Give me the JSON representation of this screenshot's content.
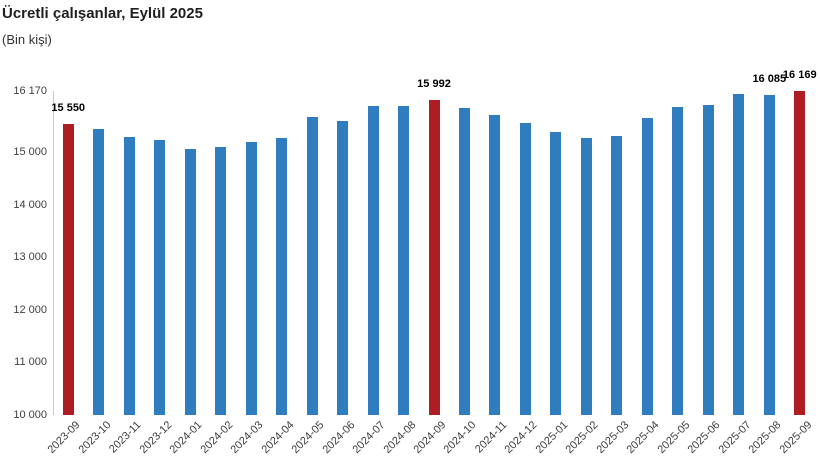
{
  "chart": {
    "title": "Ücretli çalışanlar, Eylül 2025",
    "subtitle": "(Bin kişi)"
  },
  "chart_data": {
    "type": "bar",
    "title": "Ücretli çalışanlar, Eylül 2025",
    "subtitle": "(Bin kişi)",
    "unit": "Bin kişi",
    "categories": [
      "2023-09",
      "2023-10",
      "2023-11",
      "2023-12",
      "2024-01",
      "2024-02",
      "2024-03",
      "2024-04",
      "2024-05",
      "2024-06",
      "2024-07",
      "2024-08",
      "2024-09",
      "2024-10",
      "2024-11",
      "2024-12",
      "2025-01",
      "2025-02",
      "2025-03",
      "2025-04",
      "2025-05",
      "2025-06",
      "2025-07",
      "2025-08",
      "2025-09"
    ],
    "values": [
      15550,
      15450,
      15300,
      15230,
      15060,
      15110,
      15190,
      15280,
      15680,
      15590,
      15890,
      15890,
      15992,
      15850,
      15720,
      15560,
      15390,
      15280,
      15310,
      15650,
      15860,
      15910,
      16120,
      16085,
      16169
    ],
    "highlight_indices": [
      0,
      12,
      24
    ],
    "value_labels": {
      "0": "15 550",
      "12": "15 992",
      "23": "16 085",
      "24": "16 169"
    },
    "y_ticks": [
      16170,
      15000,
      14000,
      13000,
      12000,
      11000,
      10000
    ],
    "y_tick_labels": [
      "16 170",
      "15 000",
      "14 000",
      "13 000",
      "12 000",
      "11 000",
      "10 000"
    ],
    "ylim": [
      10000,
      16170
    ],
    "xlabel": "",
    "ylabel": "",
    "grid": false,
    "legend": false,
    "colors": {
      "bar": "#2f7dbe",
      "highlight": "#af1d24",
      "axis_line": "#c9c9c9",
      "tick_text": "#3f3f3f",
      "title_text": "#1f1f1f",
      "value_label_text": "#000000"
    }
  }
}
